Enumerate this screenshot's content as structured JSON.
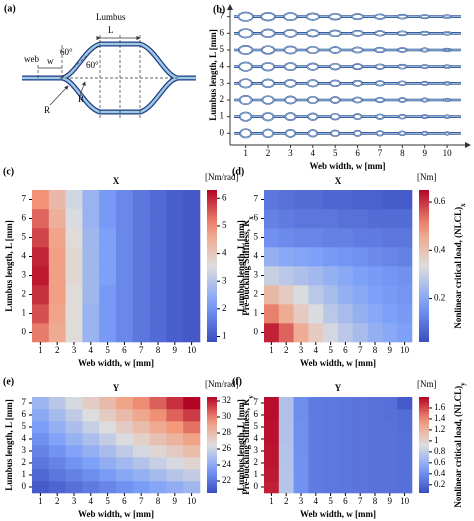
{
  "diagram": {
    "panel_label": "(a)",
    "labels": [
      "Lumbus",
      "L",
      "web",
      "w",
      "60°",
      "60°",
      "R",
      "R"
    ]
  },
  "chart_data": [
    {
      "type": "shape-grid",
      "panel_label": "(b)",
      "xlabel": "Web width, w [mm]",
      "ylabel": "Lumbus length, L [mm]",
      "xlim": [
        0.3,
        10.8
      ],
      "ylim": [
        -0.7,
        7.7
      ],
      "xticks": [
        1,
        2,
        3,
        4,
        5,
        6,
        7,
        8,
        9,
        10
      ],
      "yticks": [
        0,
        1,
        2,
        3,
        4,
        5,
        6,
        7
      ]
    },
    {
      "type": "heatmap",
      "panel_label": "(c)",
      "title": "X",
      "xlabel": "Web width, w [mm]",
      "ylabel": "Lumbus length, L [mm]",
      "x": [
        1,
        2,
        3,
        4,
        5,
        6,
        7,
        8,
        9,
        10
      ],
      "y": [
        0,
        1,
        2,
        3,
        4,
        5,
        6,
        7
      ],
      "values": [
        [
          5.2,
          4.6,
          3.6,
          2.6,
          2.1,
          1.8,
          1.5,
          1.3,
          1.1,
          1.0
        ],
        [
          5.6,
          4.7,
          3.6,
          2.6,
          2.1,
          1.8,
          1.5,
          1.3,
          1.1,
          1.0
        ],
        [
          5.9,
          4.8,
          3.6,
          2.7,
          2.1,
          1.8,
          1.5,
          1.3,
          1.1,
          1.0
        ],
        [
          6.1,
          4.8,
          3.7,
          2.7,
          2.2,
          1.8,
          1.5,
          1.3,
          1.1,
          1.0
        ],
        [
          6.0,
          4.8,
          3.7,
          2.7,
          2.2,
          1.8,
          1.5,
          1.3,
          1.1,
          1.0
        ],
        [
          5.7,
          4.7,
          3.6,
          2.7,
          2.2,
          1.8,
          1.5,
          1.3,
          1.1,
          1.0
        ],
        [
          5.4,
          4.5,
          3.5,
          2.6,
          2.1,
          1.8,
          1.5,
          1.3,
          1.1,
          1.0
        ],
        [
          5.0,
          4.3,
          3.4,
          2.6,
          2.1,
          1.8,
          1.5,
          1.3,
          1.1,
          1.0
        ]
      ],
      "colormap": "coolwarm",
      "clim": [
        0.8,
        6.3
      ],
      "cticks": [
        1,
        2,
        3,
        4,
        5,
        6
      ],
      "cbar_unit": "[Nm/rad]",
      "cbar_label": "Pre-buckling Stiffness, K",
      "cbar_label_sub": "x"
    },
    {
      "type": "heatmap",
      "panel_label": "(d)",
      "title": "X",
      "xlabel": "Web width, w [mm]",
      "ylabel": "Lumbus length, L [mm]",
      "x": [
        1,
        2,
        3,
        4,
        5,
        6,
        7,
        8,
        9,
        10
      ],
      "y": [
        0,
        1,
        2,
        3,
        4,
        5,
        6,
        7
      ],
      "values": [
        [
          0.62,
          0.55,
          0.45,
          0.38,
          0.32,
          0.28,
          0.25,
          0.22,
          0.2,
          0.18
        ],
        [
          0.52,
          0.45,
          0.38,
          0.33,
          0.28,
          0.25,
          0.22,
          0.2,
          0.18,
          0.17
        ],
        [
          0.42,
          0.38,
          0.33,
          0.28,
          0.25,
          0.22,
          0.2,
          0.18,
          0.17,
          0.16
        ],
        [
          0.3,
          0.28,
          0.26,
          0.24,
          0.22,
          0.2,
          0.18,
          0.17,
          0.16,
          0.15
        ],
        [
          0.22,
          0.2,
          0.19,
          0.18,
          0.17,
          0.16,
          0.15,
          0.14,
          0.13,
          0.12
        ],
        [
          0.15,
          0.14,
          0.13,
          0.13,
          0.12,
          0.12,
          0.11,
          0.11,
          0.1,
          0.1
        ],
        [
          0.12,
          0.11,
          0.1,
          0.1,
          0.1,
          0.09,
          0.09,
          0.08,
          0.08,
          0.08
        ],
        [
          0.1,
          0.09,
          0.08,
          0.08,
          0.07,
          0.07,
          0.06,
          0.06,
          0.05,
          0.05
        ]
      ],
      "colormap": "coolwarm",
      "clim": [
        0.02,
        0.65
      ],
      "cticks": [
        0.2,
        0.4,
        0.6
      ],
      "cbar_unit": "[Nm]",
      "cbar_label": "Nonlinear critical load, (NLCL)",
      "cbar_label_sub": "x"
    },
    {
      "type": "heatmap",
      "panel_label": "(e)",
      "title": "Y",
      "xlabel": "Web width, w [mm]",
      "ylabel": "Lumbus length, L [mm]",
      "x": [
        1,
        2,
        3,
        4,
        5,
        6,
        7,
        8,
        9,
        10
      ],
      "y": [
        0,
        1,
        2,
        3,
        4,
        5,
        6,
        7
      ],
      "values": [
        [
          21.0,
          21.4,
          21.8,
          22.2,
          22.6,
          23.0,
          23.4,
          23.8,
          24.2,
          24.6
        ],
        [
          21.5,
          22.0,
          22.4,
          22.9,
          23.4,
          23.9,
          24.3,
          24.8,
          25.3,
          25.7
        ],
        [
          22.0,
          22.5,
          23.1,
          23.6,
          24.2,
          24.7,
          25.2,
          25.8,
          26.3,
          26.9
        ],
        [
          22.5,
          23.1,
          23.7,
          24.3,
          24.9,
          25.6,
          26.2,
          26.8,
          27.4,
          28.0
        ],
        [
          23.0,
          23.7,
          24.4,
          25.0,
          25.7,
          26.4,
          27.1,
          27.8,
          28.4,
          29.1
        ],
        [
          23.5,
          24.3,
          25.0,
          25.8,
          26.5,
          27.3,
          28.0,
          28.8,
          29.5,
          30.3
        ],
        [
          24.0,
          24.8,
          25.6,
          26.5,
          27.3,
          28.1,
          28.9,
          29.7,
          30.6,
          31.4
        ],
        [
          24.5,
          25.4,
          26.3,
          27.2,
          28.1,
          29.0,
          29.8,
          30.7,
          31.6,
          32.5
        ]
      ],
      "colormap": "coolwarm",
      "clim": [
        20.5,
        32.5
      ],
      "cticks": [
        22,
        24,
        26,
        28,
        30,
        32
      ],
      "cbar_unit": "[Nm/rad]",
      "cbar_label": "Pre-buckling Stiffness, K",
      "cbar_label_sub": "y"
    },
    {
      "type": "heatmap",
      "panel_label": "(f)",
      "title": "Y",
      "xlabel": "Web width, w [mm]",
      "ylabel": "Lumbus length, L [mm]",
      "x": [
        1,
        2,
        3,
        4,
        5,
        6,
        7,
        8,
        9,
        10
      ],
      "y": [
        0,
        1,
        2,
        3,
        4,
        5,
        6,
        7
      ],
      "values": [
        [
          1.72,
          0.75,
          0.42,
          0.3,
          0.28,
          0.27,
          0.26,
          0.25,
          0.25,
          0.24
        ],
        [
          1.74,
          0.75,
          0.42,
          0.3,
          0.28,
          0.27,
          0.26,
          0.25,
          0.25,
          0.24
        ],
        [
          1.75,
          0.74,
          0.42,
          0.3,
          0.28,
          0.27,
          0.26,
          0.25,
          0.25,
          0.24
        ],
        [
          1.75,
          0.74,
          0.41,
          0.3,
          0.28,
          0.27,
          0.26,
          0.25,
          0.25,
          0.24
        ],
        [
          1.76,
          0.73,
          0.41,
          0.3,
          0.28,
          0.27,
          0.26,
          0.25,
          0.25,
          0.24
        ],
        [
          1.76,
          0.73,
          0.41,
          0.3,
          0.28,
          0.27,
          0.26,
          0.25,
          0.25,
          0.23
        ],
        [
          1.77,
          0.72,
          0.4,
          0.3,
          0.28,
          0.27,
          0.26,
          0.25,
          0.24,
          0.22
        ],
        [
          1.77,
          0.72,
          0.4,
          0.3,
          0.28,
          0.27,
          0.26,
          0.25,
          0.24,
          0.12
        ]
      ],
      "colormap": "coolwarm",
      "clim": [
        0.05,
        1.8
      ],
      "cticks": [
        0.2,
        0.4,
        0.6,
        0.8,
        1.0,
        1.2,
        1.4,
        1.6
      ],
      "cbar_unit": "[Nm]",
      "cbar_label": "Nonlinear critical load, (NLCL)",
      "cbar_label_sub": "y"
    }
  ]
}
